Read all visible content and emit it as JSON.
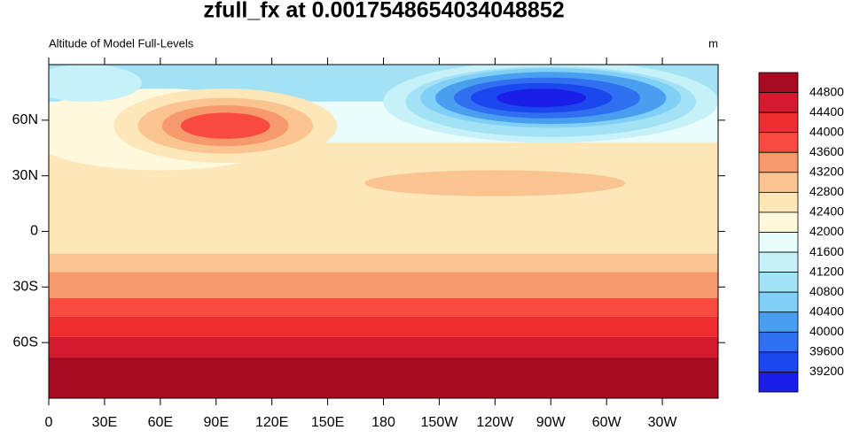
{
  "title": "zfull_fx at 0.0017548654034048852",
  "subtitle_left": "Altitude of Model Full-Levels",
  "subtitle_right": "m",
  "map": {
    "xlim": [
      0,
      360
    ],
    "ylim": [
      -90,
      90
    ],
    "xticks": [
      0,
      {
        "value": 30,
        "label": "30E"
      },
      {
        "value": 60,
        "label": "60E"
      },
      {
        "value": 90,
        "label": "90E"
      },
      {
        "value": 120,
        "label": "120E"
      },
      {
        "value": 150,
        "label": "150E"
      },
      180,
      {
        "value": 210,
        "label": "150W"
      },
      {
        "value": 240,
        "label": "120W"
      },
      {
        "value": 270,
        "label": "90W"
      },
      {
        "value": 300,
        "label": "60W"
      },
      {
        "value": 330,
        "label": "30W"
      }
    ],
    "yticks": [
      {
        "value": 60,
        "label": "60N"
      },
      {
        "value": 30,
        "label": "30N"
      },
      0,
      {
        "value": -30,
        "label": "30S"
      },
      {
        "value": -60,
        "label": "60S"
      }
    ]
  },
  "colorbar": {
    "levels": [
      44800,
      44400,
      44000,
      43600,
      43200,
      42800,
      42400,
      42000,
      41600,
      41200,
      40800,
      40400,
      40000,
      39600,
      39200
    ],
    "colors": [
      "#a70b22",
      "#d31a2e",
      "#ed2d2f",
      "#f94a40",
      "#f79a6b",
      "#f9c48f",
      "#fde6b8",
      "#fef8dc",
      "#eafdfd",
      "#c7f1f8",
      "#a3e2f5",
      "#7fcff6",
      "#4a9ef0",
      "#2f6ff0",
      "#1b47ee",
      "#1a1ee8"
    ]
  }
}
